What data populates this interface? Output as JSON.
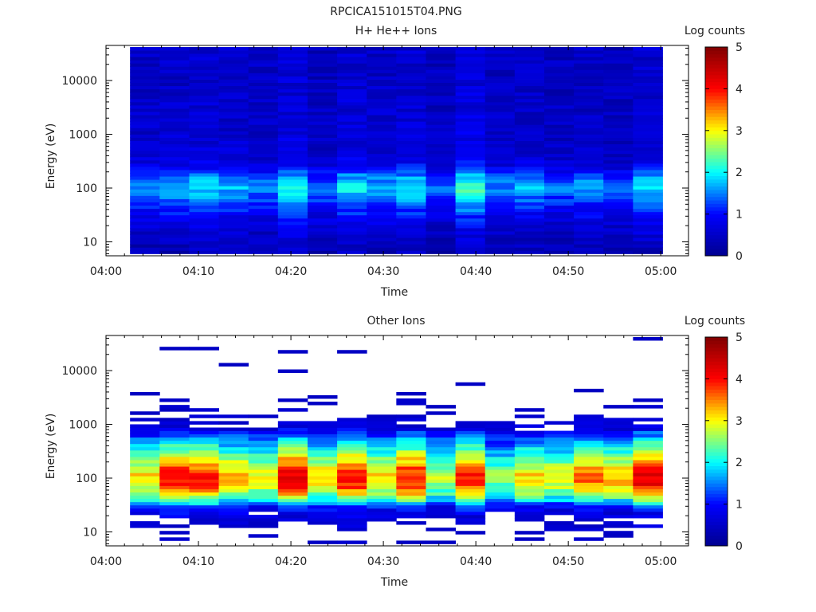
{
  "figure_title": "RPCICA151015T04.PNG",
  "colorbar": {
    "label": "Log counts",
    "ticks": [
      "0",
      "1",
      "2",
      "3",
      "4",
      "5"
    ],
    "range": [
      0,
      5
    ],
    "colormap": [
      "#00008f",
      "#0000ff",
      "#00ffff",
      "#ffff00",
      "#ff0000",
      "#800000"
    ]
  },
  "chart_data": [
    {
      "type": "heatmap",
      "title": "H+ He++ Ions",
      "xlabel": "Time",
      "ylabel": "Energy (eV)",
      "x_ticks": [
        "04:00",
        "04:10",
        "04:20",
        "04:30",
        "04:40",
        "04:50",
        "05:00"
      ],
      "xlim": [
        "04:00",
        "05:03"
      ],
      "y_scale": "log",
      "y_ticks": [
        "10",
        "100",
        "1000",
        "10000"
      ],
      "ylim": [
        5.5,
        45000
      ],
      "x_edges": [
        "04:02.6",
        "04:05.8",
        "04:09.0",
        "04:12.2",
        "04:15.4",
        "04:18.6",
        "04:21.8",
        "04:25.0",
        "04:28.2",
        "04:31.4",
        "04:34.6",
        "04:37.8",
        "04:41.0",
        "04:44.2",
        "04:47.4",
        "04:50.6",
        "04:53.8",
        "04:57.0",
        "05:00.2"
      ],
      "y_edges": [
        6,
        42000
      ],
      "z_range": [
        0,
        5
      ],
      "profile_energy_eV": [
        6.5,
        12,
        20,
        30,
        45,
        60,
        80,
        100,
        130,
        160,
        200,
        250,
        320,
        450,
        700,
        1000,
        2000,
        5000,
        10000,
        20000,
        35000
      ],
      "profile_log_counts": [
        0.4,
        0.55,
        0.75,
        1.0,
        1.25,
        1.5,
        1.75,
        1.95,
        1.8,
        1.55,
        1.2,
        0.95,
        0.8,
        0.7,
        0.65,
        0.62,
        0.6,
        0.58,
        0.56,
        0.55,
        0.55
      ],
      "column_intensity": [
        0.85,
        0.9,
        1.0,
        0.9,
        0.8,
        1.1,
        0.75,
        1.05,
        0.9,
        1.05,
        0.7,
        1.2,
        0.8,
        0.9,
        0.75,
        0.85,
        0.7,
        1.0
      ],
      "threshold": 0,
      "noise": 0.25
    },
    {
      "type": "heatmap",
      "title": "Other Ions",
      "xlabel": "Time",
      "ylabel": "Energy (eV)",
      "x_ticks": [
        "04:00",
        "04:10",
        "04:20",
        "04:30",
        "04:40",
        "04:50",
        "05:00"
      ],
      "xlim": [
        "04:00",
        "05:03"
      ],
      "y_scale": "log",
      "y_ticks": [
        "10",
        "100",
        "1000",
        "10000"
      ],
      "ylim": [
        5.5,
        45000
      ],
      "x_edges": [
        "04:02.6",
        "04:05.8",
        "04:09.0",
        "04:12.2",
        "04:15.4",
        "04:18.6",
        "04:21.8",
        "04:25.0",
        "04:28.2",
        "04:31.4",
        "04:34.6",
        "04:37.8",
        "04:41.0",
        "04:44.2",
        "04:47.4",
        "04:50.6",
        "04:53.8",
        "04:57.0",
        "05:00.2"
      ],
      "y_edges": [
        6,
        42000
      ],
      "z_range": [
        0,
        5
      ],
      "profile_energy_eV": [
        6.5,
        10,
        15,
        22,
        30,
        40,
        55,
        75,
        100,
        130,
        170,
        220,
        300,
        400,
        550,
        700,
        900,
        1500,
        3000,
        10000,
        30000
      ],
      "profile_log_counts": [
        0.3,
        0.4,
        0.6,
        0.85,
        1.4,
        2.6,
        3.5,
        4.05,
        4.2,
        4.05,
        3.7,
        3.3,
        2.8,
        2.3,
        1.8,
        1.3,
        0.7,
        0.35,
        0.25,
        0.2,
        0.2
      ],
      "column_intensity": [
        0.75,
        0.95,
        0.95,
        0.8,
        0.7,
        1.0,
        0.75,
        0.95,
        0.75,
        0.95,
        0.65,
        0.95,
        0.6,
        0.75,
        0.7,
        0.85,
        0.8,
        1.0
      ],
      "threshold": 0.45,
      "noise": 0.3
    }
  ]
}
